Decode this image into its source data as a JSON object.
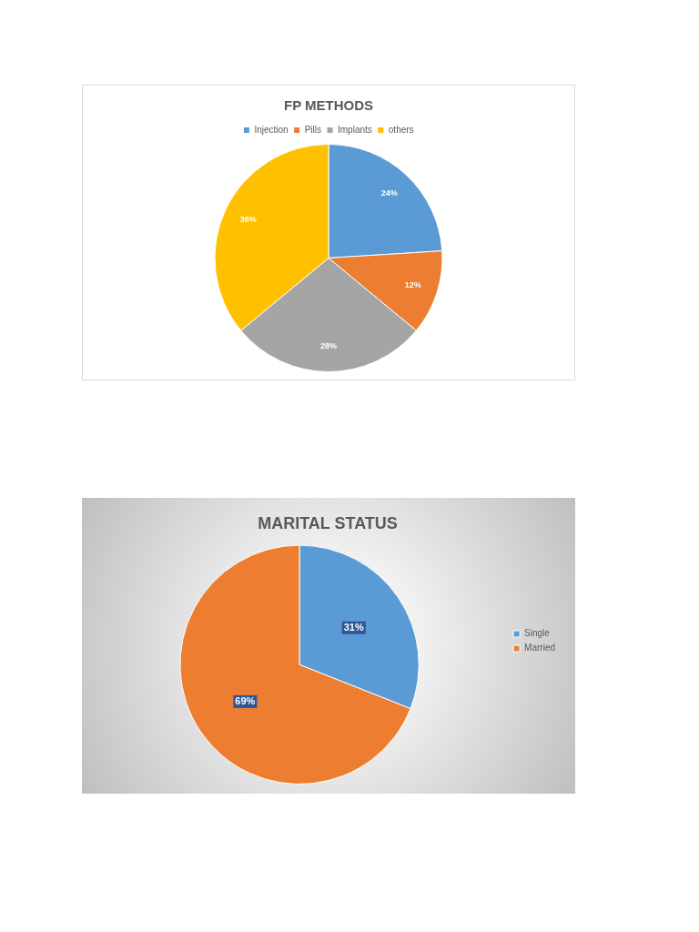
{
  "chart_data": [
    {
      "type": "pie",
      "title": "FP METHODS",
      "categories": [
        "Injection",
        "Pills",
        "Implants",
        "others"
      ],
      "values": [
        24,
        12,
        28,
        36
      ],
      "colors": [
        "#5b9bd5",
        "#ed7d31",
        "#a5a5a5",
        "#ffc000"
      ],
      "legend": "top",
      "value_labels": [
        "24%",
        "12%",
        "28%",
        "36%"
      ]
    },
    {
      "type": "pie",
      "title": "MARITAL STATUS",
      "categories": [
        "Single",
        "Married"
      ],
      "values": [
        31,
        69
      ],
      "colors": [
        "#5b9bd5",
        "#ed7d31"
      ],
      "legend": "right",
      "value_labels": [
        "31%",
        "69%"
      ]
    }
  ]
}
